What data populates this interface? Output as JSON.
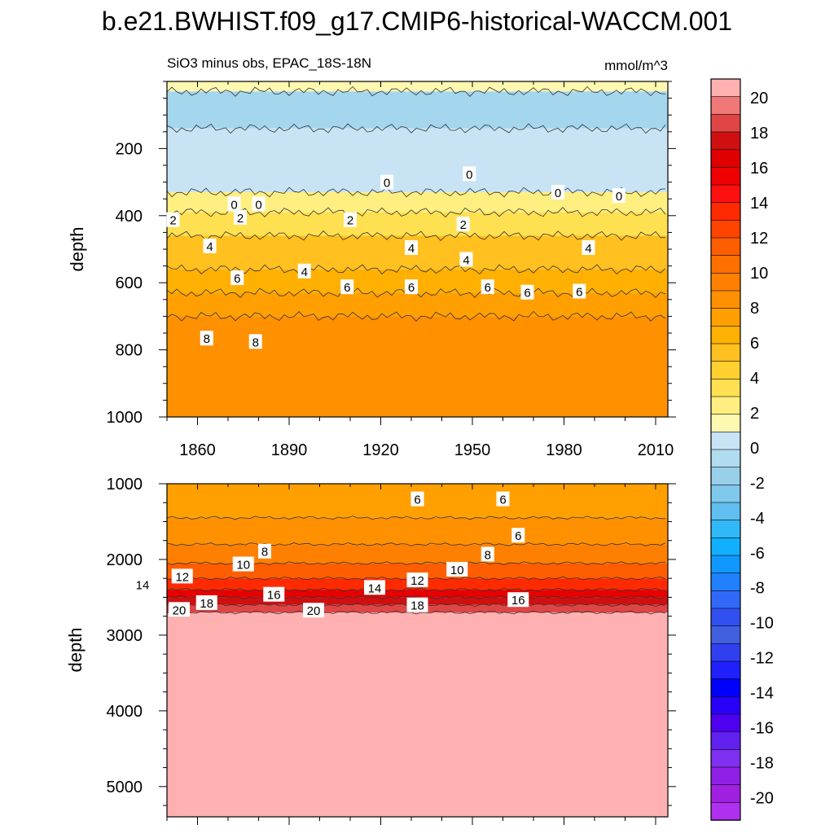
{
  "figure": {
    "title": "b.e21.BWHIST.f09_g17.CMIP6-historical-WACCM.001",
    "subtitle_left": "SiO3 minus obs, EPAC_18S-18N",
    "subtitle_right": "mmol/m^3"
  },
  "chart_data": [
    {
      "type": "heatmap",
      "panel": "upper",
      "ylabel": "depth",
      "xlabel": "",
      "y_reversed": true,
      "xlim": [
        1850,
        2014
      ],
      "ylim": [
        0,
        1000
      ],
      "x_ticks": [
        1860,
        1890,
        1920,
        1950,
        1980,
        2010
      ],
      "y_ticks": [
        200,
        400,
        600,
        800,
        1000
      ],
      "bands": [
        {
          "depth_top": 0,
          "depth_bottom": 30,
          "value": 0
        },
        {
          "depth_top": 30,
          "depth_bottom": 140,
          "value": -3
        },
        {
          "depth_top": 140,
          "depth_bottom": 330,
          "value": -1
        },
        {
          "depth_top": 330,
          "depth_bottom": 390,
          "value": 1
        },
        {
          "depth_top": 390,
          "depth_bottom": 460,
          "value": 2
        },
        {
          "depth_top": 460,
          "depth_bottom": 560,
          "value": 4
        },
        {
          "depth_top": 560,
          "depth_bottom": 630,
          "value": 5
        },
        {
          "depth_top": 630,
          "depth_bottom": 700,
          "value": 6
        },
        {
          "depth_top": 700,
          "depth_bottom": 1000,
          "value": 7
        }
      ],
      "contour_labels": [
        {
          "text": "0",
          "x": 1922,
          "depth": 300
        },
        {
          "text": "0",
          "x": 1949,
          "depth": 275
        },
        {
          "text": "0",
          "x": 1978,
          "depth": 330
        },
        {
          "text": "0",
          "x": 1998,
          "depth": 340
        },
        {
          "text": "0",
          "x": 1872,
          "depth": 365
        },
        {
          "text": "0",
          "x": 1880,
          "depth": 365
        },
        {
          "text": "2",
          "x": 1852,
          "depth": 412
        },
        {
          "text": "2",
          "x": 1874,
          "depth": 405
        },
        {
          "text": "2",
          "x": 1910,
          "depth": 412
        },
        {
          "text": "2",
          "x": 1947,
          "depth": 425
        },
        {
          "text": "4",
          "x": 1864,
          "depth": 490
        },
        {
          "text": "4",
          "x": 1895,
          "depth": 565
        },
        {
          "text": "4",
          "x": 1930,
          "depth": 495
        },
        {
          "text": "4",
          "x": 1948,
          "depth": 530
        },
        {
          "text": "4",
          "x": 1988,
          "depth": 495
        },
        {
          "text": "6",
          "x": 1873,
          "depth": 585
        },
        {
          "text": "6",
          "x": 1909,
          "depth": 612
        },
        {
          "text": "6",
          "x": 1930,
          "depth": 612
        },
        {
          "text": "6",
          "x": 1955,
          "depth": 612
        },
        {
          "text": "6",
          "x": 1968,
          "depth": 628
        },
        {
          "text": "6",
          "x": 1985,
          "depth": 625
        },
        {
          "text": "8",
          "x": 1863,
          "depth": 765
        },
        {
          "text": "8",
          "x": 1879,
          "depth": 775
        }
      ]
    },
    {
      "type": "heatmap",
      "panel": "lower",
      "ylabel": "depth",
      "xlabel": "",
      "y_reversed": true,
      "xlim": [
        1850,
        2014
      ],
      "ylim": [
        1000,
        5400
      ],
      "y_ticks": [
        1000,
        2000,
        3000,
        4000,
        5000
      ],
      "bands": [
        {
          "depth_top": 1000,
          "depth_bottom": 1450,
          "value": 6.5
        },
        {
          "depth_top": 1450,
          "depth_bottom": 1800,
          "value": 7.5
        },
        {
          "depth_top": 1800,
          "depth_bottom": 2050,
          "value": 9
        },
        {
          "depth_top": 2050,
          "depth_bottom": 2250,
          "value": 11
        },
        {
          "depth_top": 2250,
          "depth_bottom": 2400,
          "value": 13
        },
        {
          "depth_top": 2400,
          "depth_bottom": 2500,
          "value": 15
        },
        {
          "depth_top": 2500,
          "depth_bottom": 2600,
          "value": 17
        },
        {
          "depth_top": 2600,
          "depth_bottom": 2700,
          "value": 19
        },
        {
          "depth_top": 2700,
          "depth_bottom": 5400,
          "value": 21
        }
      ],
      "contour_labels": [
        {
          "text": "6",
          "x": 1932,
          "depth": 1200
        },
        {
          "text": "6",
          "x": 1960,
          "depth": 1200
        },
        {
          "text": "6",
          "x": 1965,
          "depth": 1680
        },
        {
          "text": "8",
          "x": 1882,
          "depth": 1890
        },
        {
          "text": "8",
          "x": 1955,
          "depth": 1930
        },
        {
          "text": "10",
          "x": 1875,
          "depth": 2060
        },
        {
          "text": "10",
          "x": 1945,
          "depth": 2130
        },
        {
          "text": "12",
          "x": 1855,
          "depth": 2220
        },
        {
          "text": "12",
          "x": 1932,
          "depth": 2270
        },
        {
          "text": "14",
          "x": 1842,
          "depth": 2330
        },
        {
          "text": "14",
          "x": 1918,
          "depth": 2370
        },
        {
          "text": "16",
          "x": 1885,
          "depth": 2460
        },
        {
          "text": "16",
          "x": 1965,
          "depth": 2530
        },
        {
          "text": "18",
          "x": 1863,
          "depth": 2570
        },
        {
          "text": "18",
          "x": 1932,
          "depth": 2600
        },
        {
          "text": "20",
          "x": 1854,
          "depth": 2660
        },
        {
          "text": "20",
          "x": 1898,
          "depth": 2670
        }
      ]
    }
  ],
  "colorbar": {
    "labels": [
      "20",
      "18",
      "16",
      "14",
      "12",
      "10",
      "8",
      "6",
      "4",
      "2",
      "0",
      "-2",
      "-4",
      "-6",
      "-8",
      "-10",
      "-12",
      "-14",
      "-16",
      "-18",
      "-20"
    ],
    "colors": [
      "#ffb0b0",
      "#f07878",
      "#e04545",
      "#d01010",
      "#e00000",
      "#f00000",
      "#ff1010",
      "#ff2a00",
      "#ff4400",
      "#ff5e00",
      "#ff7000",
      "#ff8000",
      "#ff9000",
      "#ffa000",
      "#ffb000",
      "#ffc020",
      "#ffd030",
      "#ffe050",
      "#ffee80",
      "#fff8b0",
      "#c8e4f4",
      "#b0dcf0",
      "#98d0ec",
      "#80c8ec",
      "#60bef0",
      "#30b8f8",
      "#10b0ff",
      "#1098ff",
      "#2080ff",
      "#3068f8",
      "#3050f0",
      "#4060e0",
      "#3040f0",
      "#2020ff",
      "#0000ff",
      "#2800f8",
      "#5000f0",
      "#6020f0",
      "#8030f0",
      "#9020e8",
      "#a020e0",
      "#b030f0"
    ]
  }
}
